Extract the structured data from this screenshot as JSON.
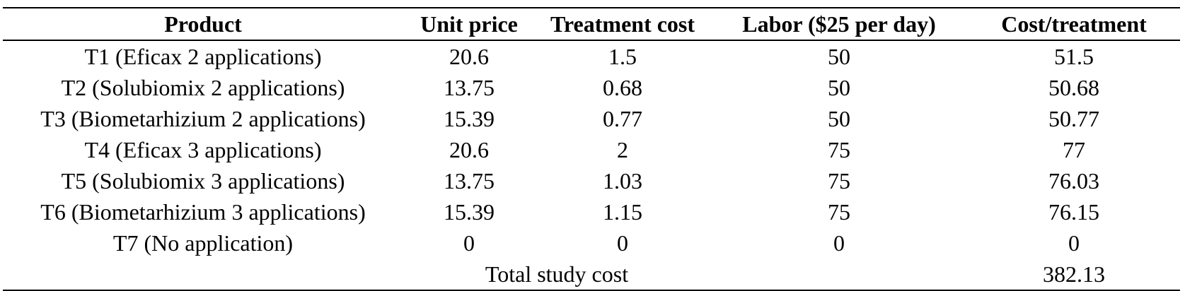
{
  "table": {
    "headers": [
      "Product",
      "Unit price",
      "Treatment cost",
      "Labor ($25 per day)",
      "Cost/treatment"
    ],
    "rows": [
      [
        "T1 (Eficax 2 applications)",
        "20.6",
        "1.5",
        "50",
        "51.5"
      ],
      [
        "T2 (Solubiomix 2 applications)",
        "13.75",
        "0.68",
        "50",
        "50.68"
      ],
      [
        "T3 (Biometarhizium 2 applications)",
        "15.39",
        "0.77",
        "50",
        "50.77"
      ],
      [
        "T4 (Eficax 3 applications)",
        "20.6",
        "2",
        "75",
        "77"
      ],
      [
        "T5 (Solubiomix 3 applications)",
        "13.75",
        "1.03",
        "75",
        "76.03"
      ],
      [
        "T6 (Biometarhizium 3 applications)",
        "15.39",
        "1.15",
        "75",
        "76.15"
      ],
      [
        "T7 (No application)",
        "0",
        "0",
        "0",
        "0"
      ]
    ],
    "total": {
      "label": "Total study cost",
      "value": "382.13"
    }
  }
}
